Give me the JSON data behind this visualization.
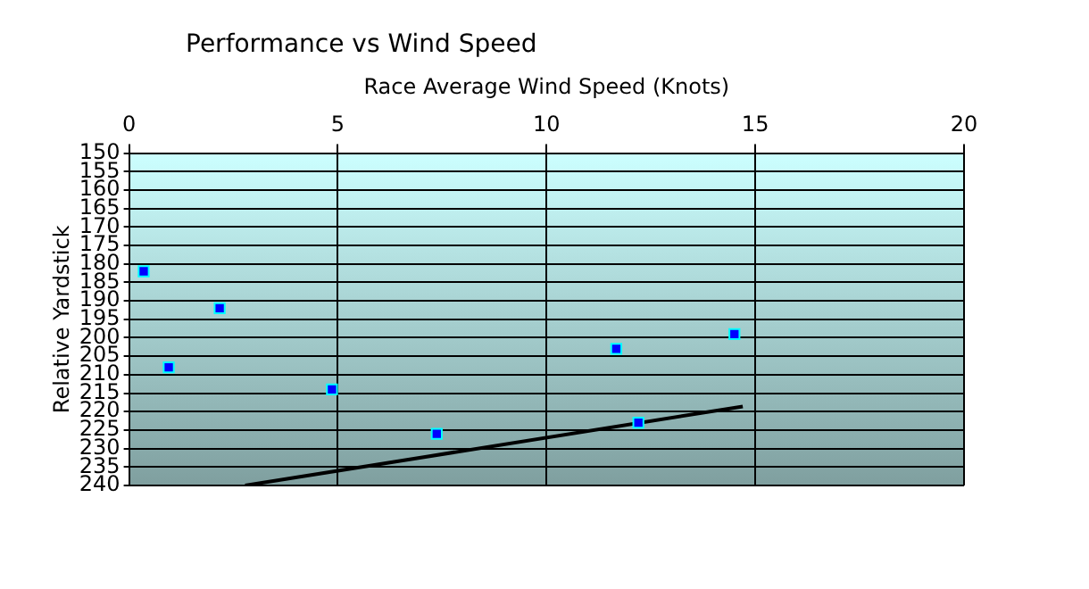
{
  "chart_data": {
    "type": "scatter",
    "title": "Performance vs Wind Speed",
    "xlabel": "Race Average Wind Speed (Knots)",
    "ylabel": "Relative Yardstick",
    "xlim": [
      0,
      20
    ],
    "xticks": [
      0,
      5,
      10,
      15,
      20
    ],
    "ylim": [
      240,
      150
    ],
    "yticks": [
      150,
      155,
      160,
      165,
      170,
      175,
      180,
      185,
      190,
      195,
      200,
      205,
      210,
      215,
      220,
      225,
      230,
      235,
      240
    ],
    "grid": true,
    "legend": false,
    "marker": "square",
    "series": [
      {
        "type": "scatter",
        "color": "#0000ff",
        "x": [
          0.35,
          2.17,
          0.95,
          4.86,
          7.37,
          11.67,
          14.5,
          12.2
        ],
        "values": [
          182,
          192,
          208,
          214,
          226,
          203,
          199,
          223
        ]
      },
      {
        "type": "line",
        "color": "#000000",
        "marker": "none",
        "x": [
          2.78,
          14.7
        ],
        "values": [
          240,
          218.6
        ]
      }
    ]
  }
}
